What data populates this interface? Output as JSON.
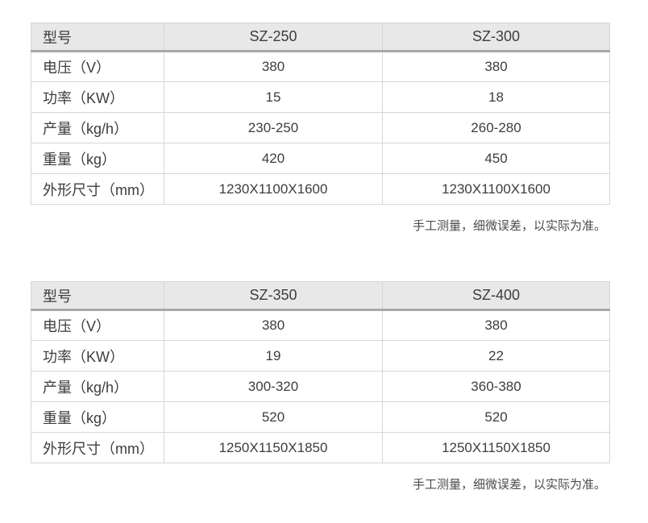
{
  "colors": {
    "page_background": "#ffffff",
    "header_background": "#e8e8e8",
    "header_underline": "#a8a8a8",
    "cell_border": "#d6d6d6",
    "text": "#3d3d3d",
    "note_text": "#4b4b4b"
  },
  "tables": [
    {
      "header": {
        "label": "型号",
        "models": [
          "SZ-250",
          "SZ-300"
        ]
      },
      "rows": [
        {
          "label": "电压（V）",
          "values": [
            "380",
            "380"
          ]
        },
        {
          "label": "功率（KW）",
          "values": [
            "15",
            "18"
          ]
        },
        {
          "label": "产量（kg/h）",
          "values": [
            "230-250",
            "260-280"
          ]
        },
        {
          "label": "重量（kg）",
          "values": [
            "420",
            "450"
          ]
        },
        {
          "label": "外形尺寸（mm）",
          "values": [
            "1230X1100X1600",
            "1230X1100X1600"
          ]
        }
      ],
      "note": "手工测量，细微误差，以实际为准。"
    },
    {
      "header": {
        "label": "型号",
        "models": [
          "SZ-350",
          "SZ-400"
        ]
      },
      "rows": [
        {
          "label": "电压（V）",
          "values": [
            "380",
            "380"
          ]
        },
        {
          "label": "功率（KW）",
          "values": [
            "19",
            "22"
          ]
        },
        {
          "label": "产量（kg/h）",
          "values": [
            "300-320",
            "360-380"
          ]
        },
        {
          "label": "重量（kg）",
          "values": [
            "520",
            "520"
          ]
        },
        {
          "label": "外形尺寸（mm）",
          "values": [
            "1250X1150X1850",
            "1250X1150X1850"
          ]
        }
      ],
      "note": "手工测量，细微误差，以实际为准。"
    }
  ]
}
